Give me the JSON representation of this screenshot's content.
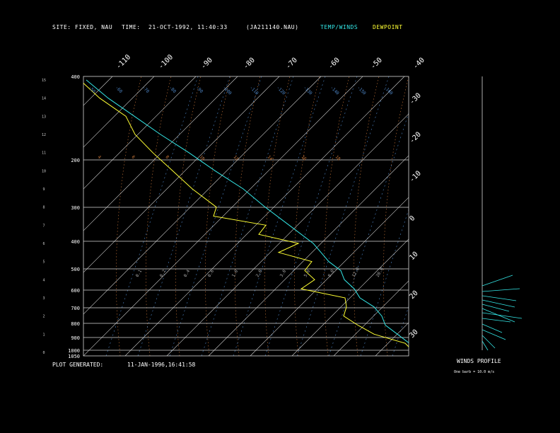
{
  "header": {
    "site_label": "SITE:",
    "site_value": "FIXED, NAU",
    "time_label": "TIME:",
    "time_value": "21-OCT-1992, 11:40:33",
    "file_label": "(JA211140.NAU)",
    "temp_winds_label": "TEMP/WINDS",
    "dewpoint_label": "DEWPOINT"
  },
  "footer": {
    "plot_generated_label": "PLOT GENERATED:",
    "plot_generated_value": "11-JAN-1996,16:41:58",
    "winds_profile_label": "WINDS PROFILE",
    "barb_note": "One barb = 10.0 m/s"
  },
  "colors": {
    "background": "#000000",
    "grid": "#d8d8d8",
    "temperature": "#33e6e6",
    "dewpoint": "#ffff33",
    "dry_adiabat": "#d07a3a",
    "moist_adiabat": "#d07a3a",
    "mixing_ratio": "#4d86c8"
  },
  "chart_data": {
    "type": "line",
    "pressure_levels": [
      400,
      200,
      300,
      400,
      500,
      600,
      700,
      800,
      900,
      1000,
      1050
    ],
    "pressure_labels": [
      "400",
      "200",
      "300",
      "400",
      "500",
      "600",
      "700",
      "800",
      "900",
      "1000",
      "1050"
    ],
    "height_km_ticks": [
      "0",
      "1",
      "2",
      "3",
      "4",
      "5",
      "6",
      "7",
      "8",
      "9",
      "10",
      "11",
      "12",
      "13",
      "14",
      "15"
    ],
    "top_temp_ticks": [
      "-110",
      "-100",
      "-90",
      "-80",
      "-70",
      "-60",
      "-50",
      "-40"
    ],
    "right_temp_ticks": [
      "-30",
      "-20",
      "-10",
      "0",
      "10",
      "20",
      "30"
    ],
    "inside_ticks": [
      "-40",
      "-30",
      "-20",
      "-10"
    ],
    "isotherm_labels_upper": [
      "-50",
      "-60",
      "-70",
      "-80",
      "-90",
      "-100",
      "-110",
      "-120",
      "-130",
      "-140",
      "-150",
      "-160"
    ],
    "dry_adiabat_labels": [
      "4",
      "6",
      "8",
      "10",
      "12",
      "14",
      "16",
      "18"
    ],
    "mixing_ratio_labels": [
      "0.1",
      "0.2",
      "0.4",
      "0.6",
      "1.0",
      "2.0",
      "3.0",
      "5.0",
      "8.0",
      "12.0",
      "20.0"
    ],
    "temperature_profile": {
      "name": "TEMP/WINDS",
      "km": [
        0.2,
        0.5,
        1.0,
        1.5,
        2.0,
        2.5,
        3.0,
        3.5,
        4.0,
        4.5,
        5.0,
        5.5,
        6.0,
        7.0,
        8.0,
        9.0,
        10.0,
        11.0,
        12.0,
        13.0,
        14.0,
        15.0
      ],
      "screen_temp_c": [
        33,
        29,
        26,
        23,
        24,
        23,
        19,
        19,
        17,
        18,
        15,
        14,
        13,
        7,
        1,
        -4,
        -12,
        -19,
        -27,
        -34,
        -41,
        -46
      ]
    },
    "dewpoint_profile": {
      "name": "DEWPOINT",
      "km": [
        0.2,
        0.5,
        1.0,
        1.5,
        2.0,
        2.5,
        3.0,
        3.5,
        4.0,
        4.5,
        5.0,
        5.5,
        6.0,
        6.5,
        7.0,
        7.5,
        8.0,
        9.0,
        10.0,
        11.0,
        12.0,
        13.0,
        14.0,
        15.0
      ],
      "screen_temp_c": [
        28,
        27,
        15,
        10,
        6,
        10,
        12,
        -6,
        3,
        1,
        7,
        -6,
        6,
        -10,
        -4,
        -26,
        -22,
        -28,
        -32,
        -36,
        -39,
        -38,
        -45,
        -49
      ]
    },
    "winds_profile": {
      "note": "One barb = 10.0 m/s"
    }
  }
}
